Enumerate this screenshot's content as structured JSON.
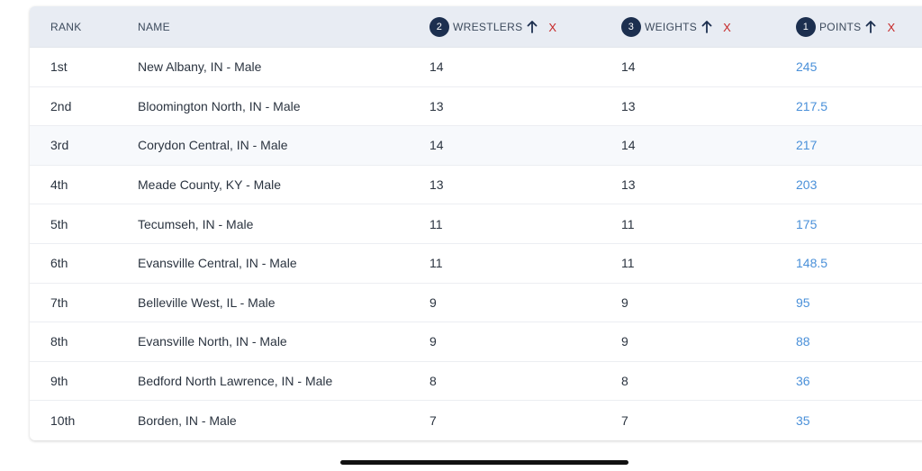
{
  "columns": {
    "rank": "RANK",
    "name": "NAME",
    "wrestlers": {
      "label": "WRESTLERS",
      "sort_order": "2",
      "remove": "X"
    },
    "weights": {
      "label": "WEIGHTS",
      "sort_order": "3",
      "remove": "X"
    },
    "points": {
      "label": "POINTS",
      "sort_order": "1",
      "remove": "X"
    }
  },
  "rows": [
    {
      "rank": "1st",
      "name": "New Albany, IN - Male",
      "wrestlers": "14",
      "weights": "14",
      "points": "245"
    },
    {
      "rank": "2nd",
      "name": "Bloomington North, IN - Male",
      "wrestlers": "13",
      "weights": "13",
      "points": "217.5"
    },
    {
      "rank": "3rd",
      "name": "Corydon Central, IN - Male",
      "wrestlers": "14",
      "weights": "14",
      "points": "217"
    },
    {
      "rank": "4th",
      "name": "Meade County, KY - Male",
      "wrestlers": "13",
      "weights": "13",
      "points": "203"
    },
    {
      "rank": "5th",
      "name": "Tecumseh, IN - Male",
      "wrestlers": "11",
      "weights": "11",
      "points": "175"
    },
    {
      "rank": "6th",
      "name": "Evansville Central, IN - Male",
      "wrestlers": "11",
      "weights": "11",
      "points": "148.5"
    },
    {
      "rank": "7th",
      "name": "Belleville West, IL - Male",
      "wrestlers": "9",
      "weights": "9",
      "points": "95"
    },
    {
      "rank": "8th",
      "name": "Evansville North, IN - Male",
      "wrestlers": "9",
      "weights": "9",
      "points": "88"
    },
    {
      "rank": "9th",
      "name": "Bedford North Lawrence, IN - Male",
      "wrestlers": "8",
      "weights": "8",
      "points": "36"
    },
    {
      "rank": "10th",
      "name": "Borden, IN - Male",
      "wrestlers": "7",
      "weights": "7",
      "points": "35"
    }
  ],
  "colors": {
    "header_bg": "#e8ecf3",
    "badge_bg": "#1c2f4f",
    "points_link": "#4a90d9",
    "remove_x": "#c62828"
  },
  "icons": {
    "sort": "arrow-up-icon"
  }
}
